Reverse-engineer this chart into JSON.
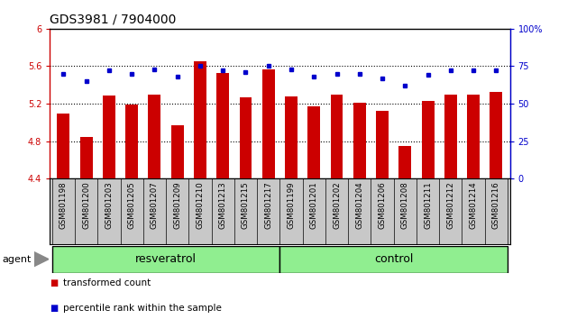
{
  "title": "GDS3981 / 7904000",
  "categories": [
    "GSM801198",
    "GSM801200",
    "GSM801203",
    "GSM801205",
    "GSM801207",
    "GSM801209",
    "GSM801210",
    "GSM801213",
    "GSM801215",
    "GSM801217",
    "GSM801199",
    "GSM801201",
    "GSM801202",
    "GSM801204",
    "GSM801206",
    "GSM801208",
    "GSM801211",
    "GSM801212",
    "GSM801214",
    "GSM801216"
  ],
  "bar_values": [
    5.09,
    4.84,
    5.29,
    5.19,
    5.3,
    4.97,
    5.65,
    5.53,
    5.27,
    5.57,
    5.28,
    5.17,
    5.3,
    5.21,
    5.12,
    4.75,
    5.23,
    5.3,
    5.3,
    5.33
  ],
  "percentile_values": [
    70,
    65,
    72,
    70,
    73,
    68,
    75,
    72,
    71,
    75,
    73,
    68,
    70,
    70,
    67,
    62,
    69,
    72,
    72,
    72
  ],
  "bar_color": "#cc0000",
  "dot_color": "#0000cc",
  "ylim_left": [
    4.4,
    6.0
  ],
  "ylim_right": [
    0,
    100
  ],
  "yticks_left": [
    4.4,
    4.8,
    5.2,
    5.6,
    6.0
  ],
  "ytick_labels_left": [
    "4.4",
    "4.8",
    "5.2",
    "5.6",
    "6"
  ],
  "yticks_right": [
    0,
    25,
    50,
    75,
    100
  ],
  "ytick_labels_right": [
    "0",
    "25",
    "50",
    "75",
    "100%"
  ],
  "group1_label": "resveratrol",
  "group2_label": "control",
  "group1_count": 10,
  "group2_count": 10,
  "agent_label": "agent",
  "legend_bar_label": "transformed count",
  "legend_dot_label": "percentile rank within the sample",
  "bar_color_hex": "#cc0000",
  "dot_color_hex": "#0000cc",
  "xticklabel_bg": "#c8c8c8",
  "group_bg_color": "#90ee90",
  "hgrid_values": [
    4.8,
    5.2,
    5.6
  ],
  "bar_width": 0.55,
  "title_fontsize": 10,
  "tick_fontsize": 7,
  "label_fontsize": 8,
  "group_fontsize": 9
}
